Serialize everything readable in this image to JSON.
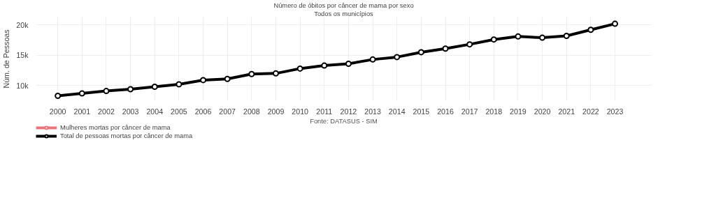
{
  "chart_data": {
    "type": "line",
    "title": "Número de óbitos por câncer de mama por sexo",
    "subtitle": "Todos os municípios",
    "ylabel": "Núm. de Pessoas",
    "annotations": [
      "Fonte: DATASUS - SIM"
    ],
    "categories": [
      "2000",
      "2001",
      "2002",
      "2003",
      "2004",
      "2005",
      "2006",
      "2007",
      "2008",
      "2009",
      "2010",
      "2011",
      "2012",
      "2013",
      "2014",
      "2015",
      "2016",
      "2017",
      "2018",
      "2019",
      "2020",
      "2021",
      "2022",
      "2023"
    ],
    "series": [
      {
        "name": "Mulheres mortas por câncer de mama",
        "color": "#e8747c",
        "values": [
          null,
          null,
          null,
          null,
          null,
          null,
          null,
          null,
          null,
          null,
          null,
          null,
          null,
          null,
          null,
          null,
          null,
          null,
          null,
          null,
          null,
          null,
          null,
          null
        ]
      },
      {
        "name": "Total de pessoas mortas por câncer de mama",
        "color": "#000000",
        "values": [
          8300,
          8700,
          9100,
          9400,
          9800,
          10200,
          10900,
          11100,
          11900,
          12000,
          12800,
          13300,
          13600,
          14300,
          14700,
          15500,
          16100,
          16800,
          17600,
          18100,
          17900,
          18200,
          19200,
          20200
        ]
      }
    ],
    "ylim": [
      7500,
      21300
    ],
    "yticks": [
      {
        "value": 10000,
        "label": "10k"
      },
      {
        "value": 15000,
        "label": "15k"
      },
      {
        "value": 20000,
        "label": "20k"
      }
    ],
    "grid": true,
    "legend": "bottom left",
    "marker": "circle",
    "line_style": "solid"
  }
}
